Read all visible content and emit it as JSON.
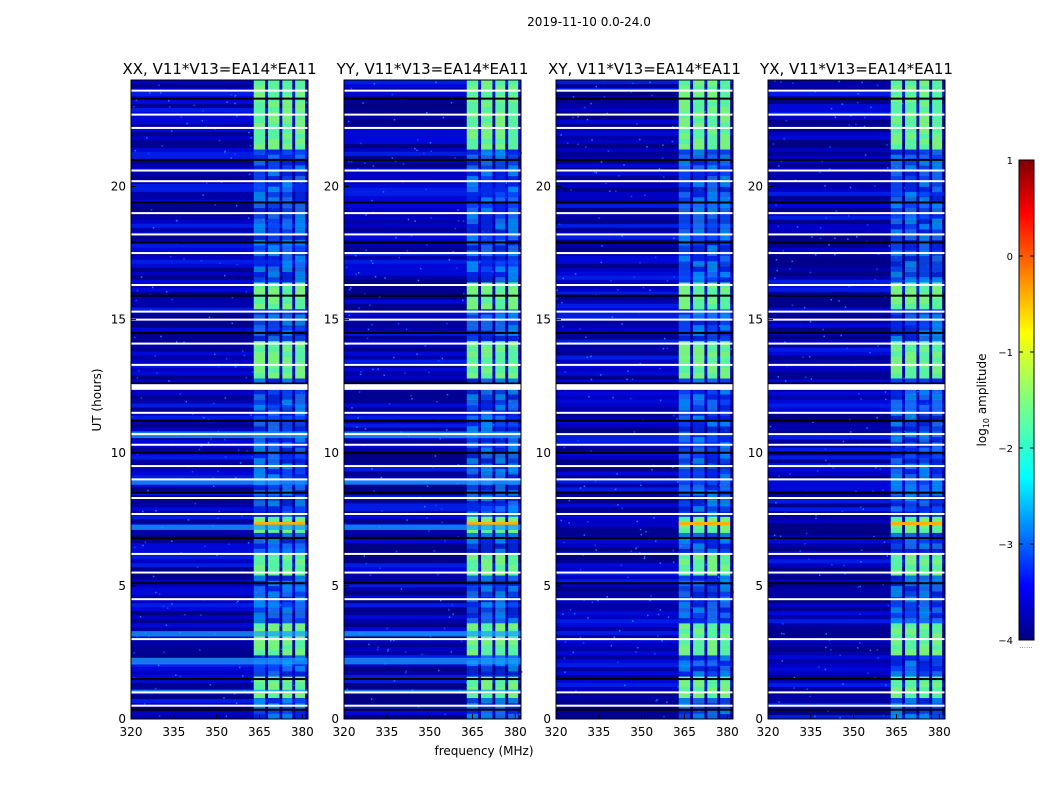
{
  "chart_data": {
    "type": "heatmap",
    "suptitle": "2019-11-10 0.0-24.0",
    "xlabel": "frequency (MHz)",
    "ylabel": "UT (hours)",
    "xlim": [
      320,
      382
    ],
    "ylim": [
      0,
      24
    ],
    "xticks": [
      320,
      335,
      350,
      365,
      380
    ],
    "yticks": [
      0,
      5,
      10,
      15,
      20
    ],
    "panels": [
      {
        "title": "XX, V11*V13=EA14*EA11"
      },
      {
        "title": "YY, V11*V13=EA14*EA11"
      },
      {
        "title": "XY, V11*V13=EA14*EA11"
      },
      {
        "title": "YX, V11*V13=EA14*EA11"
      }
    ],
    "colorbar": {
      "label": "log10 amplitude",
      "label_main": "log",
      "label_sub": "10",
      "label_end": " amplitude",
      "range": [
        -4,
        1
      ],
      "ticks": [
        "1",
        "0",
        "−1",
        "−2",
        "−3",
        "−4"
      ],
      "colormap": "jet",
      "footer": "......"
    },
    "bright_bands_mhz": [
      [
        363,
        367
      ],
      [
        368,
        372
      ],
      [
        373,
        376.5
      ],
      [
        377.5,
        381
      ]
    ],
    "gap_rows_hours": [
      0.35,
      0.5,
      1.0,
      1.5,
      3.0,
      4.5,
      5.1,
      5.5,
      6.2,
      6.8,
      7.7,
      8.3,
      8.5,
      9.0,
      9.5,
      10.0,
      10.3,
      10.7,
      11.2,
      11.5,
      12.4,
      12.6,
      13.3,
      14.1,
      14.5,
      15.0,
      15.3,
      15.9,
      16.3,
      17.5,
      17.9,
      18.2,
      19.0,
      19.4,
      20.2,
      20.6,
      21.0,
      22.2,
      22.7,
      23.3,
      23.6
    ],
    "bright_time_blocks_hours": [
      [
        0.8,
        1.5
      ],
      [
        2.3,
        3.5
      ],
      [
        5.3,
        6.0
      ],
      [
        7.0,
        7.5
      ],
      [
        12.8,
        14.1
      ],
      [
        15.4,
        16.2
      ],
      [
        21.3,
        24.0
      ]
    ]
  }
}
